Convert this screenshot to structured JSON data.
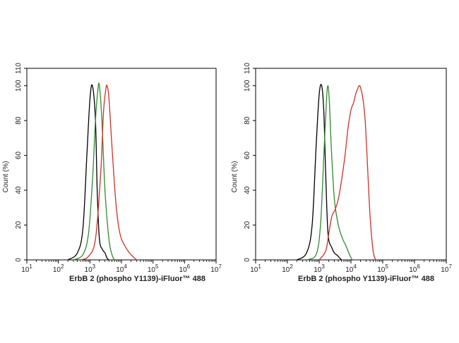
{
  "chart_data": [
    {
      "type": "line",
      "xscale": "log",
      "xlim": [
        10,
        10000000
      ],
      "ylim": [
        0,
        110
      ],
      "xticks": [
        {
          "base": "10",
          "exp": "1"
        },
        {
          "base": "10",
          "exp": "2"
        },
        {
          "base": "10",
          "exp": "3"
        },
        {
          "base": "10",
          "exp": "4"
        },
        {
          "base": "10",
          "exp": "5"
        },
        {
          "base": "10",
          "exp": "6"
        },
        {
          "base": "10",
          "exp": "7"
        }
      ],
      "yticks": [
        "0",
        "20",
        "40",
        "60",
        "80",
        "100",
        "110"
      ],
      "xlabel": "ErbB 2 (phospho Y1139)-iFluor™ 488",
      "ylabel": "Count  (%)",
      "grid": false,
      "series": [
        {
          "color": "#000000",
          "x": [
            200,
            400,
            600,
            800,
            1000,
            1200,
            1500,
            1700,
            2000,
            2500,
            3000,
            3500,
            4000
          ],
          "y": [
            0,
            4,
            18,
            60,
            92,
            100,
            80,
            40,
            12,
            6,
            4,
            1,
            0
          ]
        },
        {
          "color": "#2e8b2e",
          "x": [
            300,
            600,
            900,
            1200,
            1500,
            1800,
            2000,
            2400,
            3000,
            4000,
            5000,
            6000
          ],
          "y": [
            0,
            3,
            15,
            45,
            80,
            98,
            100,
            80,
            40,
            12,
            3,
            0
          ]
        },
        {
          "color": "#d03028",
          "x": [
            500,
            900,
            1500,
            2200,
            2700,
            3200,
            3500,
            4000,
            5000,
            6500,
            8000,
            10000,
            15000,
            20000,
            30000
          ],
          "y": [
            0,
            2,
            12,
            50,
            85,
            98,
            100,
            93,
            65,
            35,
            20,
            12,
            6,
            3,
            0
          ]
        }
      ]
    },
    {
      "type": "line",
      "xscale": "log",
      "xlim": [
        10,
        10000000
      ],
      "ylim": [
        0,
        110
      ],
      "xticks": [
        {
          "base": "10",
          "exp": "1"
        },
        {
          "base": "10",
          "exp": "2"
        },
        {
          "base": "10",
          "exp": "3"
        },
        {
          "base": "10",
          "exp": "4"
        },
        {
          "base": "10",
          "exp": "5"
        },
        {
          "base": "10",
          "exp": "6"
        },
        {
          "base": "10",
          "exp": "7"
        }
      ],
      "yticks": [
        "0",
        "20",
        "40",
        "60",
        "80",
        "100",
        "110"
      ],
      "xlabel": "ErbB 2 (phospho Y1139)-iFluor™ 488",
      "ylabel": "Count  (%)",
      "grid": false,
      "series": [
        {
          "color": "#000000",
          "x": [
            200,
            400,
            600,
            800,
            1000,
            1200,
            1400,
            1600,
            1900,
            2500,
            3000,
            3500,
            4000,
            5000
          ],
          "y": [
            0,
            4,
            20,
            65,
            95,
            100,
            85,
            50,
            15,
            7,
            4,
            3,
            2,
            0
          ]
        },
        {
          "color": "#2e8b2e",
          "x": [
            400,
            800,
            1100,
            1400,
            1700,
            1900,
            2100,
            2400,
            3000,
            4000,
            5500,
            7000,
            9000,
            11000
          ],
          "y": [
            0,
            3,
            20,
            60,
            92,
            100,
            90,
            65,
            35,
            20,
            12,
            8,
            3,
            0
          ]
        },
        {
          "color": "#d03028",
          "x": [
            1000,
            1600,
            2000,
            2500,
            3200,
            4000,
            5000,
            6500,
            8000,
            10000,
            12000,
            14000,
            16000,
            18000,
            20000,
            24000,
            28000,
            32000,
            40000,
            50000,
            60000
          ],
          "y": [
            0,
            5,
            15,
            25,
            29,
            35,
            45,
            60,
            75,
            86,
            90,
            95,
            98,
            100,
            99,
            92,
            80,
            60,
            25,
            5,
            0
          ]
        }
      ]
    }
  ]
}
